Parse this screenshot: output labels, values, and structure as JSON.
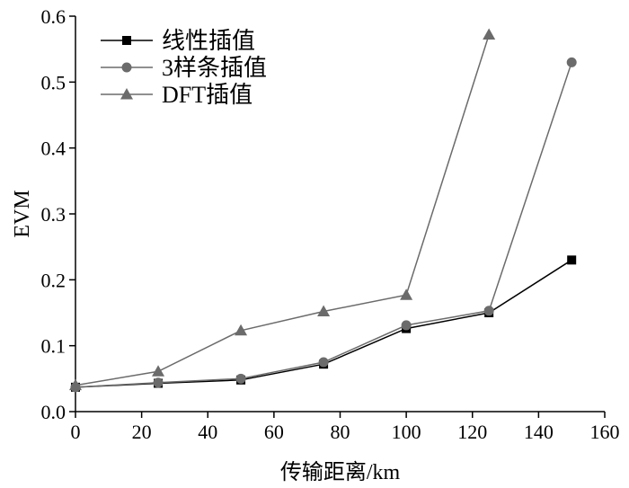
{
  "chart_data": {
    "type": "line",
    "xlabel": "传输距离/km",
    "ylabel": "EVM",
    "xlim": [
      0,
      160
    ],
    "ylim": [
      0,
      0.6
    ],
    "xticks": [
      "0",
      "20",
      "40",
      "60",
      "80",
      "100",
      "120",
      "140",
      "160"
    ],
    "yticks": [
      "0.0",
      "0.1",
      "0.2",
      "0.3",
      "0.4",
      "0.5",
      "0.6"
    ],
    "grid": false,
    "legend_position": "top-left",
    "series": [
      {
        "name": "线性插值",
        "marker": "square",
        "color": "#000000",
        "x": [
          0,
          25,
          50,
          75,
          100,
          125,
          150
        ],
        "y": [
          0.037,
          0.043,
          0.048,
          0.072,
          0.126,
          0.15,
          0.23
        ]
      },
      {
        "name": "3样条插值",
        "marker": "circle",
        "color": "#6b6b6b",
        "x": [
          0,
          25,
          50,
          75,
          100,
          125,
          150
        ],
        "y": [
          0.037,
          0.044,
          0.05,
          0.075,
          0.131,
          0.153,
          0.53
        ]
      },
      {
        "name": "DFT插值",
        "marker": "triangle",
        "color": "#6b6b6b",
        "x": [
          0,
          25,
          50,
          100,
          125,
          75
        ],
        "y": [
          0.04,
          0.061,
          0.123,
          0.177,
          0.572,
          0.152
        ]
      }
    ]
  }
}
